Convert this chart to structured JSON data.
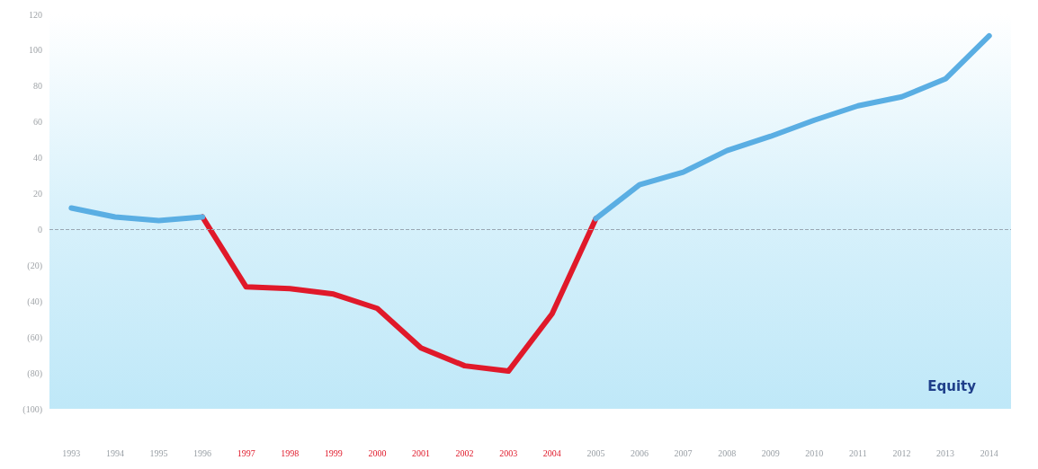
{
  "chart_data": {
    "type": "line",
    "categories": [
      "1993",
      "1994",
      "1995",
      "1996",
      "1997",
      "1998",
      "1999",
      "2000",
      "2001",
      "2002",
      "2003",
      "2004",
      "2005",
      "2006",
      "2007",
      "2008",
      "2009",
      "2010",
      "2011",
      "2012",
      "2013",
      "2014"
    ],
    "series": [
      {
        "color": "#e0192a",
        "values": [
          null,
          null,
          null,
          7,
          -32,
          -33,
          -36,
          -44,
          -66,
          -76,
          -79,
          -47,
          6,
          null,
          null,
          null,
          null,
          null,
          null,
          null,
          null,
          null
        ]
      },
      {
        "color": "#5aaee3",
        "values": [
          12,
          7,
          5,
          7,
          null,
          null,
          null,
          null,
          null,
          null,
          null,
          null,
          6,
          25,
          32,
          44,
          52,
          61,
          69,
          74,
          84,
          108
        ]
      }
    ],
    "ylim": [
      -100,
      120
    ],
    "yticks": [
      {
        "value": -100,
        "label": "(100)"
      },
      {
        "value": -80,
        "label": "(80)"
      },
      {
        "value": -60,
        "label": "(60)"
      },
      {
        "value": -40,
        "label": "(40)"
      },
      {
        "value": -20,
        "label": "(20)"
      },
      0,
      20,
      40,
      60,
      80,
      100,
      120
    ],
    "ref_lines": [
      {
        "axis": "y",
        "value": 0,
        "color": "#9aa6b2",
        "line_style": "dashed"
      }
    ],
    "annotations": [
      "Equity"
    ],
    "grid": false,
    "marker": "none",
    "line_style": "solid"
  }
}
